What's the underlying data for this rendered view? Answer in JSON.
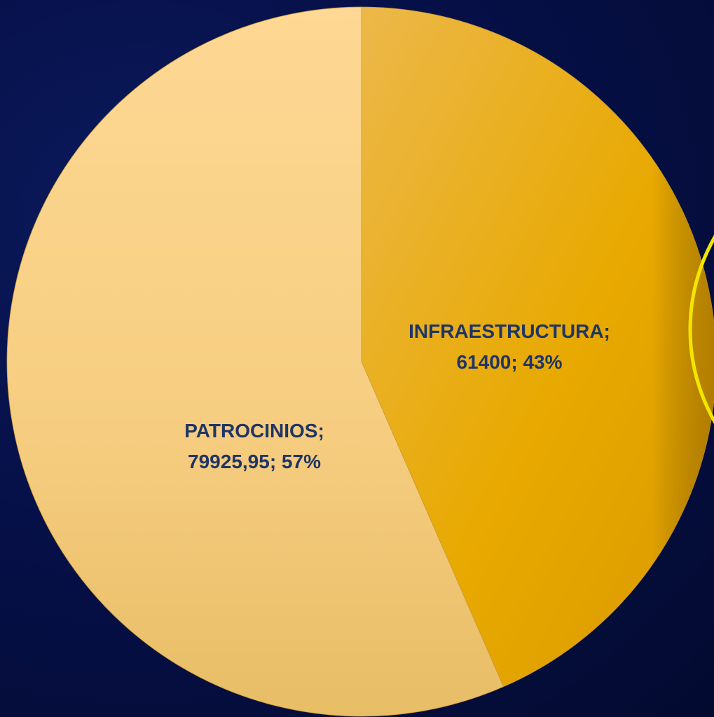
{
  "chart_data": {
    "type": "pie",
    "categories": [
      "INFRAESTRUCTURA",
      "PATROCINIOS"
    ],
    "values": [
      61400,
      79925.95
    ],
    "percentages": [
      43,
      57
    ],
    "data_labels": [
      [
        "INFRAESTRUCTURA;",
        "61400; 43%"
      ],
      [
        "PATROCINIOS;",
        "79925,95; 57%"
      ]
    ],
    "colors": [
      "#e8a800",
      "#fcd68a"
    ],
    "title": "",
    "legend": "none"
  }
}
